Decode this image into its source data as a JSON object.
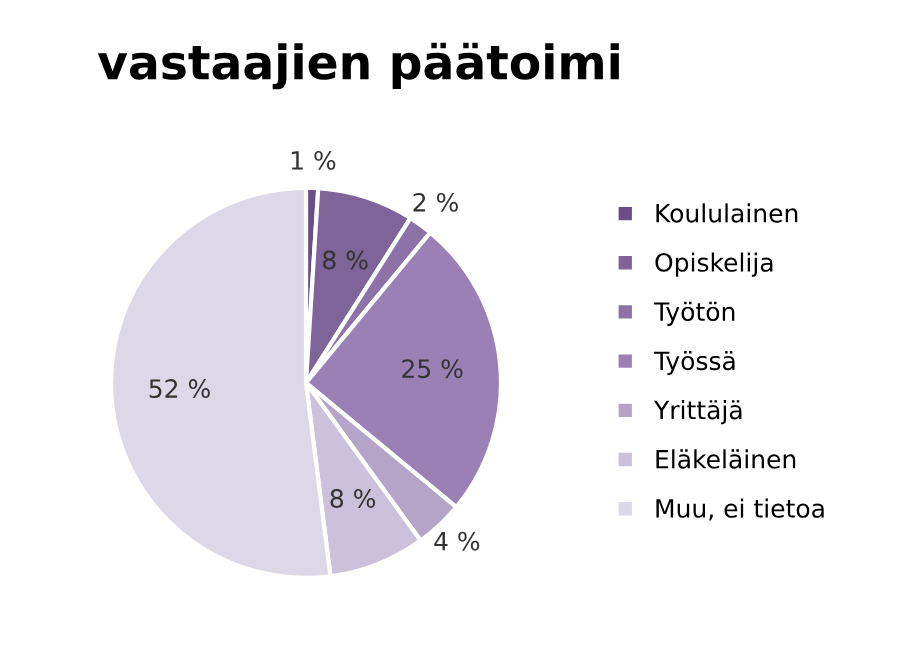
{
  "chart_data": {
    "type": "pie",
    "title": "vastaajien päätoimi",
    "categories": [
      "Koululainen",
      "Opiskelija",
      "Työtön",
      "Työssä",
      "Yrittäjä",
      "Eläkeläinen",
      "Muu, ei tietoa"
    ],
    "values": [
      1,
      8,
      2,
      25,
      4,
      8,
      52
    ],
    "value_labels": [
      "1 %",
      "8 %",
      "2 %",
      "25 %",
      "4 %",
      "8 %",
      "52 %"
    ],
    "colors": [
      "#6a4f87",
      "#7e6499",
      "#8c72a6",
      "#9b80b6",
      "#b4a4c8",
      "#cbc1da",
      "#ddd8e7"
    ],
    "legend": "right"
  }
}
